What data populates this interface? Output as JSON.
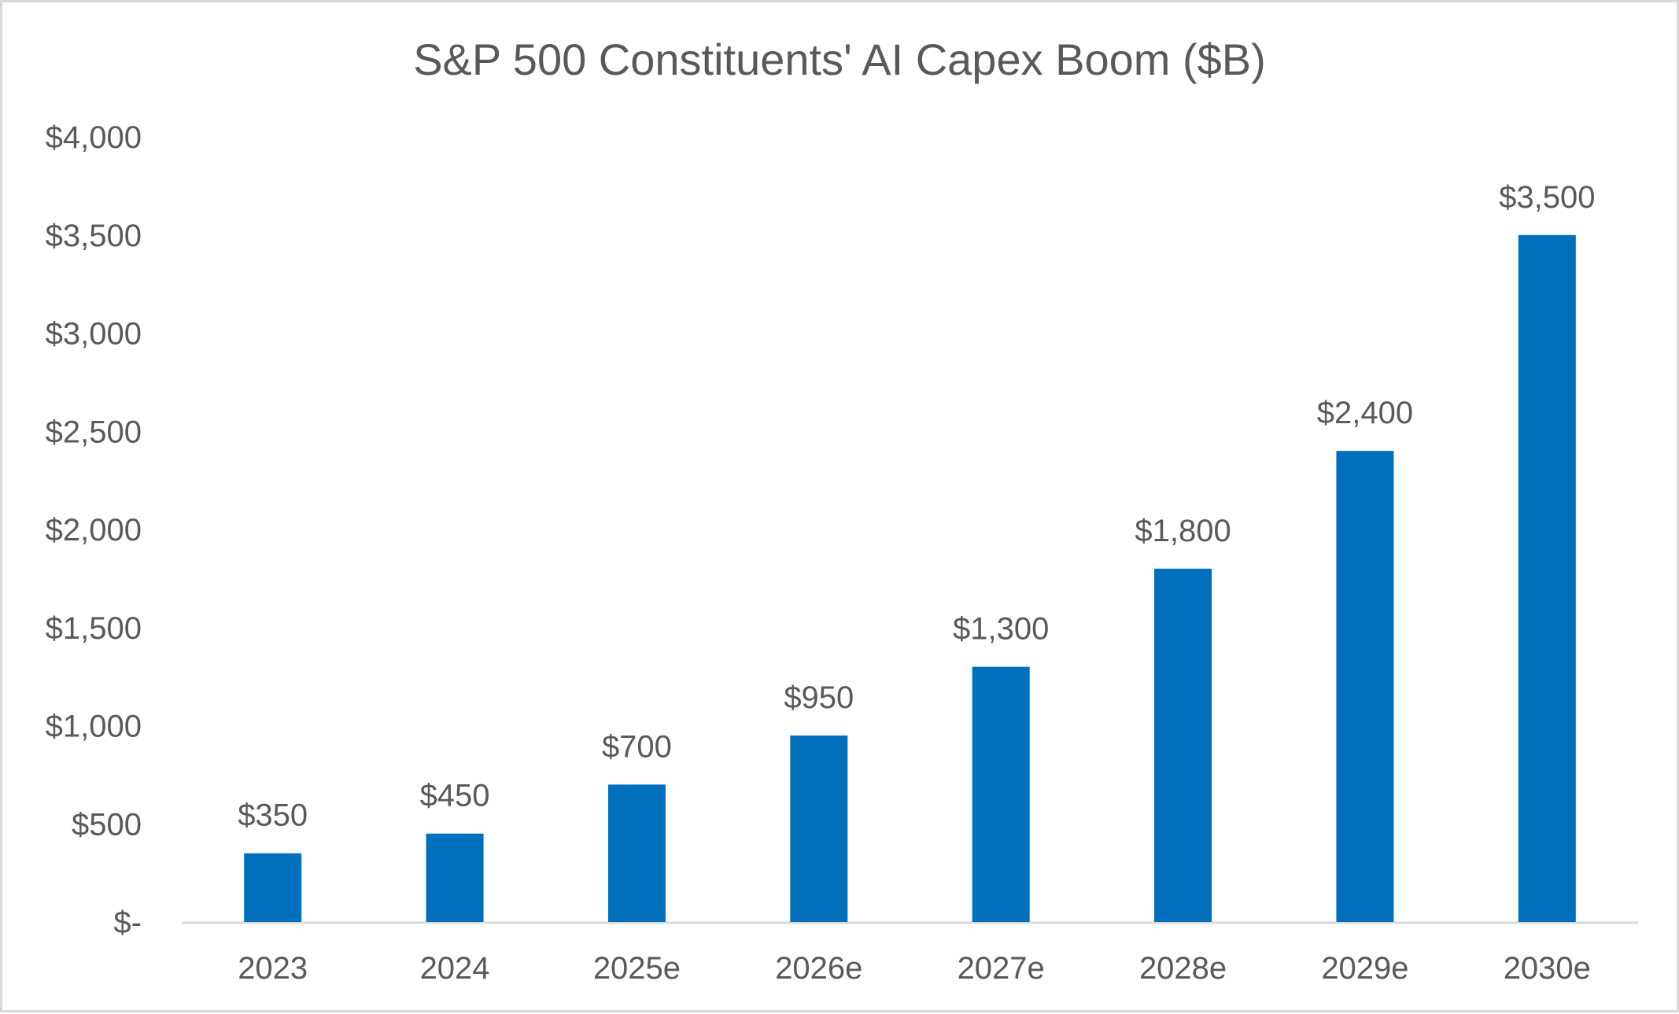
{
  "chart_data": {
    "type": "bar",
    "title": "S&P 500 Constituents' AI Capex Boom ($B)",
    "xlabel": "",
    "ylabel": "",
    "categories": [
      "2023",
      "2024",
      "2025e",
      "2026e",
      "2027e",
      "2028e",
      "2029e",
      "2030e"
    ],
    "values": [
      350,
      450,
      700,
      950,
      1300,
      1800,
      2400,
      3500
    ],
    "data_labels": [
      "$350",
      "$450",
      "$700",
      "$950",
      "$1,300",
      "$1,800",
      "$2,400",
      "$3,500"
    ],
    "ylim": [
      0,
      4000
    ],
    "yticks": [
      0,
      500,
      1000,
      1500,
      2000,
      2500,
      3000,
      3500,
      4000
    ],
    "ytick_labels": [
      "$-",
      "$500",
      "$1,000",
      "$1,500",
      "$2,000",
      "$2,500",
      "$3,000",
      "$3,500",
      "$4,000"
    ],
    "grid": false,
    "legend": "none",
    "colors": {
      "bar": "#0070BC",
      "text": "#595959",
      "axis": "#D9D9D9"
    }
  }
}
